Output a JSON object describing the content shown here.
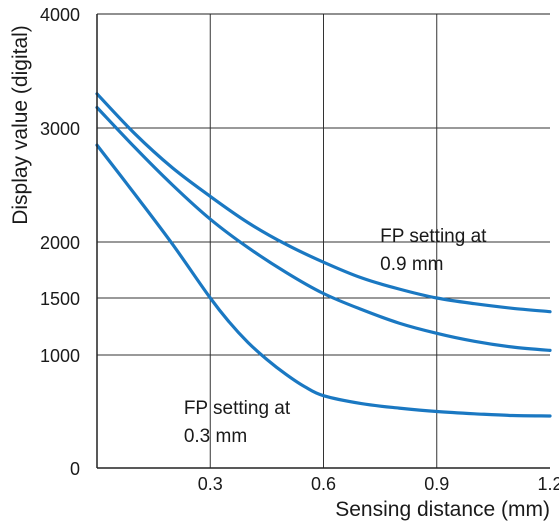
{
  "chart_data": {
    "type": "line",
    "xlabel": "Sensing distance (mm)",
    "ylabel": "Display value (digital)",
    "xlim": [
      0,
      1.2
    ],
    "xticks": [
      "0.3",
      "0.6",
      "0.9",
      "1.2"
    ],
    "yticks": [
      {
        "label": "0",
        "value": 0
      },
      {
        "label": "1000",
        "value": 1000
      },
      {
        "label": "1500",
        "value": 1500
      },
      {
        "label": "2000",
        "value": 2000
      },
      {
        "label": "3000",
        "value": 3000
      },
      {
        "label": "4000",
        "value": 4000
      }
    ],
    "grid": true,
    "line_color": "#1a78c2",
    "series": [
      {
        "x": [
          0,
          0.1,
          0.2,
          0.3,
          0.4,
          0.5,
          0.6,
          0.7,
          0.8,
          0.9,
          1.0,
          1.1,
          1.2
        ],
        "values": [
          3300,
          2950,
          2650,
          2400,
          2170,
          1980,
          1820,
          1680,
          1580,
          1500,
          1450,
          1410,
          1380
        ]
      },
      {
        "x": [
          0,
          0.1,
          0.2,
          0.3,
          0.4,
          0.5,
          0.6,
          0.7,
          0.8,
          0.9,
          1.0,
          1.1,
          1.2
        ],
        "values": [
          3180,
          2830,
          2500,
          2200,
          1950,
          1730,
          1540,
          1400,
          1280,
          1190,
          1120,
          1070,
          1040
        ]
      },
      {
        "x": [
          0,
          0.1,
          0.2,
          0.3,
          0.35,
          0.4,
          0.45,
          0.5,
          0.55,
          0.6,
          0.7,
          0.8,
          0.9,
          1.0,
          1.1,
          1.2
        ],
        "values": [
          2850,
          2420,
          1980,
          1500,
          1290,
          1110,
          960,
          830,
          720,
          640,
          570,
          530,
          500,
          480,
          465,
          460
        ]
      }
    ],
    "annotations": [
      {
        "lines": [
          "FP setting at",
          "0.9 mm"
        ],
        "x": 0.75,
        "y": 2000
      },
      {
        "lines": [
          "FP setting at",
          "0.3 mm"
        ],
        "x": 0.23,
        "y": 480
      }
    ]
  }
}
